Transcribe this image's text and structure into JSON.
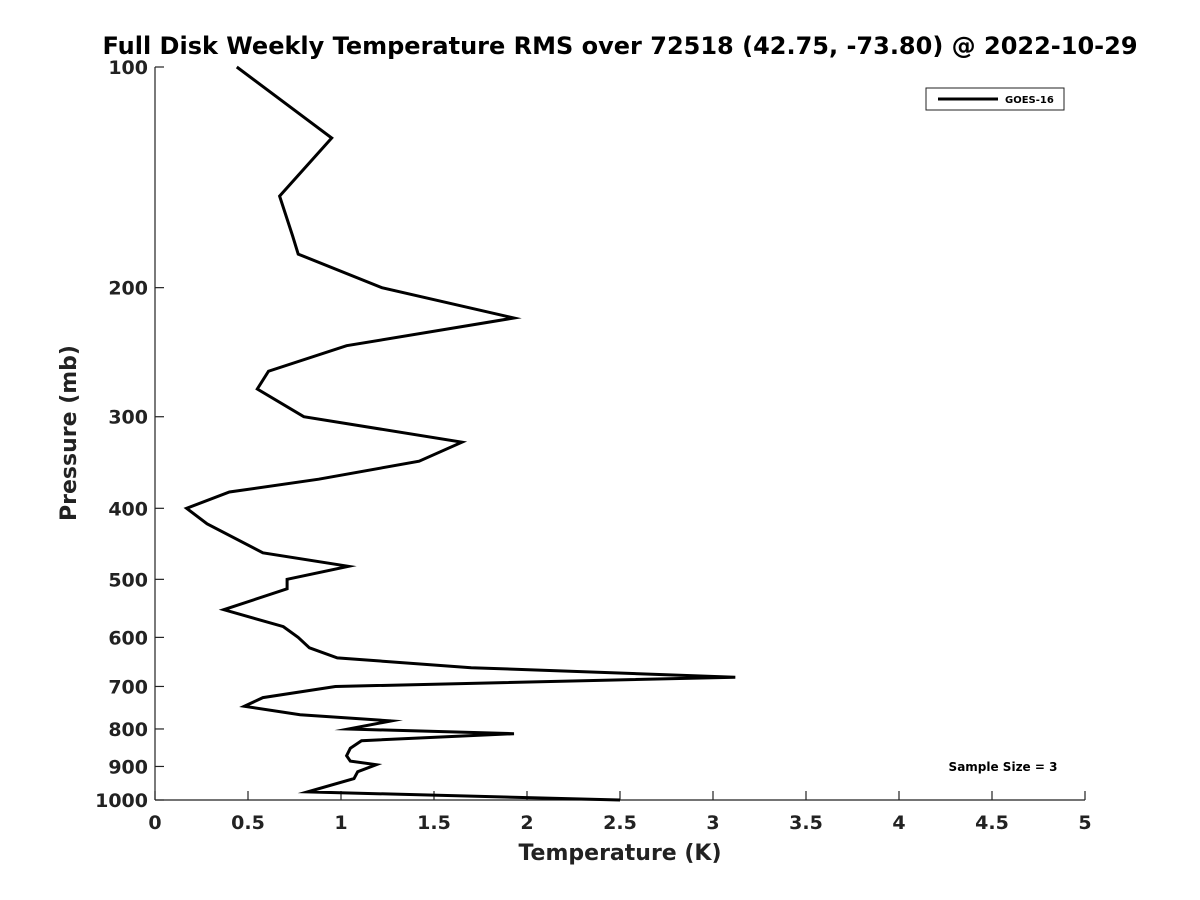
{
  "chart_data": {
    "type": "line",
    "title": "Full Disk Weekly Temperature RMS over 72518 (42.75, -73.80) @ 2022-10-29",
    "xlabel": "Temperature (K)",
    "ylabel": "Pressure (mb)",
    "xlim": [
      0,
      5
    ],
    "ylim": [
      100,
      1000
    ],
    "y_scale": "log",
    "y_reversed": true,
    "grid": false,
    "legend_position": "top-right",
    "x_ticks": [
      0,
      0.5,
      1,
      1.5,
      2,
      2.5,
      3,
      3.5,
      4,
      4.5,
      5
    ],
    "x_tick_labels": [
      "0",
      "0.5",
      "1",
      "1.5",
      "2",
      "2.5",
      "3",
      "3.5",
      "4",
      "4.5",
      "5"
    ],
    "y_ticks": [
      100,
      200,
      300,
      400,
      500,
      600,
      700,
      800,
      900,
      1000
    ],
    "y_tick_labels": [
      "100",
      "200",
      "300",
      "400",
      "500",
      "600",
      "700",
      "800",
      "900",
      "1000"
    ],
    "series": [
      {
        "name": "GOES-16",
        "color": "#000000",
        "points": [
          [
            0.44,
            100
          ],
          [
            0.95,
            125
          ],
          [
            0.67,
            150
          ],
          [
            0.74,
            170
          ],
          [
            0.77,
            180
          ],
          [
            1.22,
            200
          ],
          [
            1.93,
            220
          ],
          [
            1.03,
            240
          ],
          [
            0.61,
            260
          ],
          [
            0.55,
            275
          ],
          [
            0.8,
            300
          ],
          [
            1.65,
            325
          ],
          [
            1.42,
            345
          ],
          [
            0.88,
            365
          ],
          [
            0.4,
            380
          ],
          [
            0.17,
            400
          ],
          [
            0.28,
            420
          ],
          [
            0.58,
            460
          ],
          [
            1.04,
            480
          ],
          [
            0.71,
            500
          ],
          [
            0.71,
            515
          ],
          [
            0.37,
            550
          ],
          [
            0.69,
            580
          ],
          [
            0.77,
            600
          ],
          [
            0.83,
            620
          ],
          [
            0.98,
            640
          ],
          [
            1.7,
            660
          ],
          [
            3.12,
            680
          ],
          [
            0.97,
            700
          ],
          [
            0.58,
            725
          ],
          [
            0.48,
            745
          ],
          [
            0.78,
            765
          ],
          [
            1.27,
            780
          ],
          [
            1.04,
            800
          ],
          [
            1.93,
            812
          ],
          [
            1.11,
            830
          ],
          [
            1.05,
            850
          ],
          [
            1.03,
            870
          ],
          [
            1.05,
            885
          ],
          [
            1.19,
            895
          ],
          [
            1.09,
            915
          ],
          [
            1.07,
            935
          ],
          [
            0.82,
            975
          ],
          [
            2.5,
            1000
          ]
        ]
      }
    ],
    "annotations": [
      "Sample Size = 3"
    ]
  }
}
